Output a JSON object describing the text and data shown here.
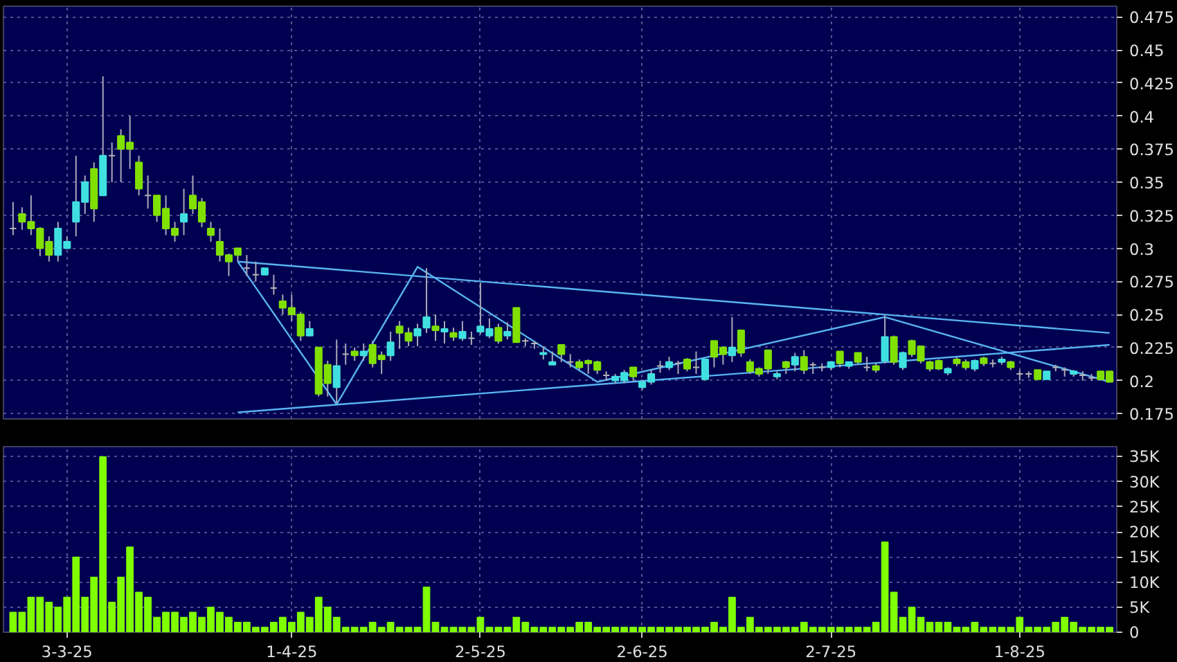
{
  "chart_data": [
    {
      "type": "candlestick",
      "categories": [
        null,
        null,
        null,
        null,
        null,
        null,
        null,
        null,
        null,
        null,
        null,
        null,
        null,
        null,
        null,
        null,
        null,
        null,
        null,
        null,
        null,
        null,
        null,
        null,
        null,
        null,
        null,
        null,
        null,
        null,
        null,
        null,
        null,
        null,
        null,
        null,
        null,
        null,
        null,
        null,
        null,
        null,
        null,
        null,
        null,
        null,
        null,
        null,
        null,
        null,
        null,
        null,
        null,
        null,
        null,
        null,
        null,
        null,
        null,
        null,
        null,
        null,
        null,
        null,
        null,
        null,
        null,
        null,
        null,
        null,
        null,
        null,
        null,
        null,
        null,
        null,
        null,
        null,
        null,
        null,
        null,
        null,
        null,
        null,
        null,
        null,
        null,
        null,
        null,
        null,
        null,
        null,
        null,
        null,
        null,
        null,
        null,
        null,
        null,
        null,
        null,
        null,
        null,
        null,
        null,
        null,
        null,
        null,
        null,
        null,
        null,
        null,
        null,
        null,
        null,
        null,
        null,
        null,
        null,
        null,
        null,
        null,
        null
      ],
      "ohlc": [
        [
          0.315,
          0.335,
          0.31,
          0.315
        ],
        [
          0.326,
          0.331,
          0.314,
          0.32
        ],
        [
          0.32,
          0.34,
          0.31,
          0.315
        ],
        [
          0.315,
          0.316,
          0.294,
          0.3
        ],
        [
          0.305,
          0.309,
          0.29,
          0.295
        ],
        [
          0.295,
          0.32,
          0.29,
          0.315
        ],
        [
          0.3,
          0.309,
          0.3,
          0.305
        ],
        [
          0.32,
          0.37,
          0.309,
          0.335
        ],
        [
          0.335,
          0.355,
          0.326,
          0.35
        ],
        [
          0.36,
          0.365,
          0.32,
          0.33
        ],
        [
          0.34,
          0.43,
          0.34,
          0.37
        ],
        [
          0.37,
          0.38,
          0.35,
          0.37
        ],
        [
          0.385,
          0.39,
          0.35,
          0.375
        ],
        [
          0.38,
          0.4,
          0.36,
          0.375
        ],
        [
          0.365,
          0.37,
          0.34,
          0.345
        ],
        [
          0.34,
          0.355,
          0.33,
          0.34
        ],
        [
          0.34,
          0.34,
          0.32,
          0.325
        ],
        [
          0.33,
          0.34,
          0.31,
          0.315
        ],
        [
          0.315,
          0.32,
          0.305,
          0.31
        ],
        [
          0.32,
          0.345,
          0.31,
          0.326
        ],
        [
          0.34,
          0.355,
          0.326,
          0.33
        ],
        [
          0.335,
          0.338,
          0.316,
          0.32
        ],
        [
          0.315,
          0.32,
          0.305,
          0.31
        ],
        [
          0.305,
          0.315,
          0.29,
          0.295
        ],
        [
          0.295,
          0.296,
          0.279,
          0.29
        ],
        [
          0.3,
          0.3,
          0.29,
          0.295
        ],
        [
          0.285,
          0.295,
          0.279,
          0.285
        ],
        [
          0.28,
          0.29,
          0.275,
          0.28
        ],
        [
          0.28,
          0.285,
          0.28,
          0.285
        ],
        [
          0.27,
          0.28,
          0.265,
          0.27
        ],
        [
          0.26,
          0.265,
          0.25,
          0.255
        ],
        [
          0.255,
          0.265,
          0.245,
          0.25
        ],
        [
          0.25,
          0.252,
          0.23,
          0.234
        ],
        [
          0.234,
          0.245,
          0.234,
          0.239
        ],
        [
          0.225,
          0.225,
          0.188,
          0.19
        ],
        [
          0.212,
          0.215,
          0.188,
          0.198
        ],
        [
          0.195,
          0.231,
          0.183,
          0.211
        ],
        [
          0.22,
          0.228,
          0.212,
          0.22
        ],
        [
          0.222,
          0.225,
          0.215,
          0.219
        ],
        [
          0.219,
          0.228,
          0.215,
          0.222
        ],
        [
          0.227,
          0.23,
          0.21,
          0.213
        ],
        [
          0.219,
          0.222,
          0.205,
          0.216
        ],
        [
          0.219,
          0.237,
          0.215,
          0.229
        ],
        [
          0.241,
          0.245,
          0.224,
          0.236
        ],
        [
          0.236,
          0.24,
          0.226,
          0.23
        ],
        [
          0.234,
          0.243,
          0.226,
          0.239
        ],
        [
          0.24,
          0.285,
          0.236,
          0.248
        ],
        [
          0.241,
          0.25,
          0.23,
          0.238
        ],
        [
          0.237,
          0.245,
          0.228,
          0.239
        ],
        [
          0.236,
          0.24,
          0.23,
          0.233
        ],
        [
          0.232,
          0.245,
          0.23,
          0.237
        ],
        [
          0.232,
          0.237,
          0.227,
          0.232
        ],
        [
          0.237,
          0.274,
          0.235,
          0.241
        ],
        [
          0.234,
          0.247,
          0.232,
          0.239
        ],
        [
          0.24,
          0.243,
          0.228,
          0.23
        ],
        [
          0.234,
          0.244,
          0.231,
          0.237
        ],
        [
          0.255,
          0.255,
          0.229,
          0.229
        ],
        [
          0.23,
          0.232,
          0.226,
          0.23
        ],
        [
          0.228,
          0.23,
          0.224,
          0.228
        ],
        [
          0.22,
          0.226,
          0.216,
          0.221
        ],
        [
          0.212,
          0.222,
          0.212,
          0.214
        ],
        [
          0.227,
          0.227,
          0.214,
          0.22
        ],
        [
          0.214,
          0.22,
          0.21,
          0.214
        ],
        [
          0.214,
          0.216,
          0.208,
          0.21
        ],
        [
          0.215,
          0.216,
          0.205,
          0.213
        ],
        [
          0.214,
          0.215,
          0.205,
          0.208
        ],
        [
          0.204,
          0.207,
          0.2,
          0.204
        ],
        [
          0.2,
          0.205,
          0.198,
          0.203
        ],
        [
          0.2,
          0.208,
          0.198,
          0.206
        ],
        [
          0.21,
          0.21,
          0.2,
          0.203
        ],
        [
          0.195,
          0.2,
          0.193,
          0.199
        ],
        [
          0.199,
          0.208,
          0.197,
          0.205
        ],
        [
          0.211,
          0.215,
          0.206,
          0.211
        ],
        [
          0.21,
          0.218,
          0.208,
          0.214
        ],
        [
          0.213,
          0.215,
          0.205,
          0.213
        ],
        [
          0.216,
          0.217,
          0.207,
          0.209
        ],
        [
          0.21,
          0.222,
          0.205,
          0.21
        ],
        [
          0.201,
          0.216,
          0.2,
          0.216
        ],
        [
          0.23,
          0.23,
          0.21,
          0.218
        ],
        [
          0.225,
          0.226,
          0.212,
          0.22
        ],
        [
          0.219,
          0.248,
          0.214,
          0.225
        ],
        [
          0.238,
          0.238,
          0.218,
          0.221
        ],
        [
          0.214,
          0.216,
          0.205,
          0.207
        ],
        [
          0.209,
          0.21,
          0.203,
          0.205
        ],
        [
          0.223,
          0.223,
          0.205,
          0.209
        ],
        [
          0.203,
          0.207,
          0.201,
          0.205
        ],
        [
          0.214,
          0.215,
          0.205,
          0.21
        ],
        [
          0.212,
          0.221,
          0.207,
          0.218
        ],
        [
          0.218,
          0.223,
          0.205,
          0.208
        ],
        [
          0.212,
          0.214,
          0.205,
          0.212
        ],
        [
          0.21,
          0.213,
          0.207,
          0.21
        ],
        [
          0.21,
          0.214,
          0.208,
          0.214
        ],
        [
          0.222,
          0.222,
          0.21,
          0.213
        ],
        [
          0.211,
          0.214,
          0.209,
          0.214
        ],
        [
          0.221,
          0.221,
          0.212,
          0.214
        ],
        [
          0.21,
          0.218,
          0.207,
          0.21
        ],
        [
          0.211,
          0.213,
          0.206,
          0.208
        ],
        [
          0.215,
          0.249,
          0.213,
          0.233
        ],
        [
          0.233,
          0.234,
          0.212,
          0.214
        ],
        [
          0.21,
          0.222,
          0.208,
          0.221
        ],
        [
          0.23,
          0.231,
          0.218,
          0.22
        ],
        [
          0.226,
          0.226,
          0.213,
          0.215
        ],
        [
          0.214,
          0.215,
          0.207,
          0.209
        ],
        [
          0.215,
          0.216,
          0.208,
          0.209
        ],
        [
          0.206,
          0.21,
          0.204,
          0.209
        ],
        [
          0.216,
          0.218,
          0.211,
          0.213
        ],
        [
          0.214,
          0.216,
          0.208,
          0.21
        ],
        [
          0.209,
          0.216,
          0.207,
          0.215
        ],
        [
          0.217,
          0.218,
          0.211,
          0.213
        ],
        [
          0.213,
          0.216,
          0.21,
          0.213
        ],
        [
          0.214,
          0.218,
          0.212,
          0.216
        ],
        [
          0.214,
          0.215,
          0.208,
          0.21
        ],
        [
          0.205,
          0.208,
          0.2,
          0.205
        ],
        [
          0.205,
          0.207,
          0.202,
          0.205
        ],
        [
          0.208,
          0.208,
          0.201,
          0.201
        ],
        [
          0.201,
          0.207,
          0.201,
          0.207
        ],
        [
          0.21,
          0.212,
          0.207,
          0.21
        ],
        [
          0.208,
          0.21,
          0.203,
          0.208
        ],
        [
          0.205,
          0.208,
          0.203,
          0.207
        ],
        [
          0.204,
          0.207,
          0.2,
          0.204
        ],
        [
          0.202,
          0.205,
          0.2,
          0.202
        ],
        [
          0.207,
          0.207,
          0.2,
          0.201
        ],
        [
          0.207,
          0.207,
          0.199,
          0.199
        ]
      ],
      "colors": [
        "#b4b4b4",
        "#80e000",
        "#80e000",
        "#80e000",
        "#80e000",
        "#40e0e0",
        "#40e0e0",
        "#40e0e0",
        "#40e0e0",
        "#80e000",
        "#40e0e0",
        "#b4b4b4",
        "#80e000",
        "#80e000",
        "#80e000",
        "#b4b4b4",
        "#80e000",
        "#80e000",
        "#80e000",
        "#40e0e0",
        "#80e000",
        "#80e000",
        "#80e000",
        "#80e000",
        "#80e000",
        "#80e000",
        "#b4b4b4",
        "#b4b4b4",
        "#40e0e0",
        "#b4b4b4",
        "#80e000",
        "#80e000",
        "#80e000",
        "#40e0e0",
        "#80e000",
        "#80e000",
        "#40e0e0",
        "#b4b4b4",
        "#80e000",
        "#40e0e0",
        "#80e000",
        "#80e000",
        "#40e0e0",
        "#80e000",
        "#80e000",
        "#40e0e0",
        "#40e0e0",
        "#80e000",
        "#40e0e0",
        "#80e000",
        "#40e0e0",
        "#b4b4b4",
        "#40e0e0",
        "#40e0e0",
        "#80e000",
        "#40e0e0",
        "#80e000",
        "#b4b4b4",
        "#b4b4b4",
        "#40e0e0",
        "#40e0e0",
        "#80e000",
        "#b4b4b4",
        "#80e000",
        "#80e000",
        "#80e000",
        "#b4b4b4",
        "#40e0e0",
        "#40e0e0",
        "#80e000",
        "#40e0e0",
        "#40e0e0",
        "#b4b4b4",
        "#40e0e0",
        "#b4b4b4",
        "#80e000",
        "#b4b4b4",
        "#40e0e0",
        "#80e000",
        "#80e000",
        "#40e0e0",
        "#80e000",
        "#80e000",
        "#80e000",
        "#80e000",
        "#40e0e0",
        "#80e000",
        "#40e0e0",
        "#80e000",
        "#b4b4b4",
        "#b4b4b4",
        "#40e0e0",
        "#80e000",
        "#40e0e0",
        "#80e000",
        "#b4b4b4",
        "#80e000",
        "#40e0e0",
        "#80e000",
        "#40e0e0",
        "#80e000",
        "#80e000",
        "#80e000",
        "#80e000",
        "#40e0e0",
        "#80e000",
        "#80e000",
        "#40e0e0",
        "#80e000",
        "#b4b4b4",
        "#40e0e0",
        "#80e000",
        "#b4b4b4",
        "#b4b4b4",
        "#80e000",
        "#40e0e0",
        "#b4b4b4",
        "#b4b4b4",
        "#40e0e0",
        "#b4b4b4",
        "#b4b4b4",
        "#80e000",
        "#80e000"
      ],
      "series": [
        {
          "type": "line",
          "color": "#58b4f0",
          "values": [
            null,
            null,
            null,
            null,
            null,
            null,
            null,
            null,
            null,
            null,
            null,
            null,
            null,
            null,
            null,
            null,
            null,
            null,
            null,
            null,
            null,
            null,
            null,
            null,
            null,
            0.29,
            null,
            null,
            null,
            null,
            null,
            null,
            null,
            null,
            null,
            null,
            null,
            null,
            null,
            null,
            null,
            null,
            null,
            null,
            null,
            null,
            null,
            null,
            null,
            null,
            null,
            null,
            null,
            null,
            null,
            null,
            null,
            null,
            null,
            null,
            null,
            null,
            null,
            null,
            null,
            null,
            null,
            null,
            null,
            null,
            null,
            null,
            null,
            null,
            null,
            null,
            null,
            null,
            null,
            null,
            null,
            null,
            null,
            null,
            null,
            null,
            null,
            null,
            null,
            null,
            null,
            null,
            null,
            null,
            null,
            null,
            null,
            null,
            null,
            null,
            null,
            null,
            null,
            null,
            null,
            null,
            null,
            null,
            null,
            null,
            null,
            null,
            null,
            null,
            null,
            null,
            null,
            null,
            null,
            null,
            null,
            null,
            0.236
          ]
        },
        {
          "type": "line",
          "color": "#58b4f0",
          "values": [
            null,
            null,
            null,
            null,
            null,
            null,
            null,
            null,
            null,
            null,
            null,
            null,
            null,
            null,
            null,
            null,
            null,
            null,
            null,
            null,
            null,
            null,
            null,
            null,
            null,
            0.176,
            null,
            null,
            null,
            null,
            null,
            null,
            null,
            null,
            null,
            null,
            null,
            null,
            null,
            null,
            null,
            null,
            null,
            null,
            null,
            null,
            null,
            null,
            null,
            null,
            null,
            null,
            null,
            null,
            null,
            null,
            null,
            null,
            null,
            null,
            null,
            null,
            null,
            null,
            null,
            null,
            null,
            null,
            null,
            null,
            null,
            null,
            null,
            null,
            null,
            null,
            null,
            null,
            null,
            null,
            null,
            null,
            null,
            null,
            null,
            null,
            null,
            null,
            null,
            null,
            null,
            null,
            null,
            null,
            null,
            null,
            null,
            null,
            null,
            null,
            null,
            null,
            null,
            null,
            null,
            null,
            null,
            null,
            null,
            null,
            null,
            null,
            null,
            null,
            null,
            null,
            null,
            null,
            null,
            null,
            null,
            null,
            0.227
          ]
        },
        {
          "type": "line",
          "color": "#58b4f0",
          "values": [
            null,
            null,
            null,
            null,
            null,
            null,
            null,
            null,
            null,
            null,
            null,
            null,
            null,
            null,
            null,
            null,
            null,
            null,
            null,
            null,
            null,
            null,
            null,
            null,
            null,
            0.29,
            null,
            null,
            null,
            null,
            null,
            null,
            null,
            null,
            null,
            null,
            0.182,
            null,
            null,
            null,
            null,
            null,
            null,
            null,
            null,
            0.286,
            null,
            null,
            null,
            null,
            null,
            null,
            null,
            null,
            null,
            null,
            null,
            null,
            null,
            null,
            null,
            null,
            null,
            null,
            null,
            0.199,
            null,
            null,
            null,
            null,
            null,
            null,
            null,
            null,
            null,
            null,
            null,
            null,
            null,
            null,
            null,
            null,
            null,
            null,
            null,
            null,
            null,
            null,
            null,
            null,
            null,
            null,
            null,
            null,
            null,
            null,
            null,
            0.248,
            null,
            null,
            null,
            null,
            null,
            null,
            null,
            null,
            null,
            null,
            null,
            null,
            null,
            null,
            null,
            null,
            null,
            null,
            null,
            null,
            null,
            null,
            null,
            null,
            0.199
          ]
        }
      ],
      "ylim": [
        0.171,
        0.483
      ],
      "yticks": [
        0.175,
        0.2,
        0.225,
        0.25,
        0.275,
        0.3,
        0.325,
        0.35,
        0.375,
        0.4,
        0.425,
        0.45,
        0.475
      ],
      "grid": true,
      "tick_labels": "y"
    },
    {
      "type": "bar",
      "color": "#80ff00",
      "categories": [
        null,
        null,
        null,
        null,
        null,
        null,
        "3-3-25",
        null,
        null,
        null,
        null,
        null,
        null,
        null,
        null,
        null,
        null,
        null,
        null,
        null,
        null,
        null,
        null,
        null,
        null,
        null,
        null,
        null,
        null,
        null,
        null,
        "1-4-25",
        null,
        null,
        null,
        null,
        null,
        null,
        null,
        null,
        null,
        null,
        null,
        null,
        null,
        null,
        null,
        null,
        null,
        null,
        null,
        null,
        "2-5-25",
        null,
        null,
        null,
        null,
        null,
        null,
        null,
        null,
        null,
        null,
        null,
        null,
        null,
        null,
        null,
        null,
        null,
        "2-6-25",
        null,
        null,
        null,
        null,
        null,
        null,
        null,
        null,
        null,
        null,
        null,
        null,
        null,
        null,
        null,
        null,
        null,
        null,
        null,
        null,
        "2-7-25",
        null,
        null,
        null,
        null,
        null,
        null,
        null,
        null,
        null,
        null,
        null,
        null,
        null,
        null,
        null,
        null,
        null,
        null,
        null,
        null,
        "1-8-25",
        null,
        null,
        null,
        null,
        null,
        null,
        null,
        null,
        null,
        null
      ],
      "values": [
        4000,
        4000,
        7000,
        7000,
        6000,
        5000,
        7000,
        15000,
        7000,
        11000,
        35000,
        6000,
        11000,
        17000,
        8000,
        7000,
        3000,
        4000,
        4000,
        3000,
        4000,
        3000,
        5000,
        4000,
        3000,
        2000,
        2000,
        1000,
        1000,
        2000,
        3000,
        2000,
        4000,
        3000,
        7000,
        5000,
        3000,
        1000,
        1000,
        1000,
        2000,
        1000,
        2000,
        1000,
        1000,
        1000,
        9000,
        2000,
        1000,
        1000,
        1000,
        1000,
        3000,
        1000,
        1000,
        1000,
        3000,
        2000,
        1000,
        1000,
        1000,
        1000,
        1000,
        2000,
        2000,
        1000,
        1000,
        1000,
        1000,
        1000,
        1000,
        1000,
        1000,
        1000,
        1000,
        1000,
        1000,
        1000,
        2000,
        1000,
        7000,
        1000,
        3000,
        1000,
        1000,
        1000,
        1000,
        1000,
        2000,
        1000,
        1000,
        1000,
        1000,
        1000,
        1000,
        1000,
        2000,
        18000,
        8000,
        3000,
        5000,
        3000,
        2000,
        2000,
        2000,
        1000,
        1000,
        2000,
        1000,
        1000,
        1000,
        1000,
        3000,
        1000,
        1000,
        1000,
        2000,
        3000,
        2000,
        1000,
        1000,
        1000,
        1000
      ],
      "ylim": [
        0,
        37000
      ],
      "yticks": [
        0,
        {
          "value": 5000,
          "label": "5K"
        },
        {
          "value": 10000,
          "label": "10K"
        },
        {
          "value": 15000,
          "label": "15K"
        },
        {
          "value": 20000,
          "label": "20K"
        },
        {
          "value": 25000,
          "label": "25K"
        },
        {
          "value": 30000,
          "label": "30K"
        },
        {
          "value": 35000,
          "label": "35K"
        }
      ],
      "grid": true
    }
  ]
}
